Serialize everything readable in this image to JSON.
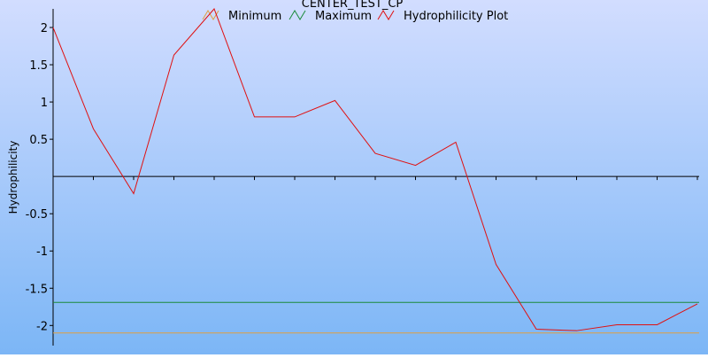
{
  "chart_data": {
    "type": "line",
    "title": "CENTER_TEST_CP",
    "y_label": "Hydrophilicity",
    "categories": [
      null,
      null,
      null,
      null,
      null,
      null,
      null,
      null,
      null,
      null,
      null,
      null,
      null,
      null,
      null,
      null,
      null
    ],
    "series": [
      {
        "name": "Minimum",
        "color": "#e0a040",
        "value": -2.1
      },
      {
        "name": "Maximum",
        "color": "#1a8a3a",
        "value": -1.69
      },
      {
        "name": "Hydrophilicity Plot",
        "color": "#e01010",
        "values": [
          2.0,
          0.64,
          -0.23,
          1.63,
          2.25,
          0.8,
          0.8,
          1.02,
          0.31,
          0.15,
          0.46,
          -1.18,
          -2.05,
          -2.07,
          -1.99,
          -1.99,
          -1.71
        ]
      }
    ],
    "ylim": [
      -2.27,
      2.25
    ],
    "yticks": [
      2,
      1.5,
      1,
      0.5,
      -0.5,
      -1,
      -1.5,
      -2
    ],
    "grid": false
  }
}
